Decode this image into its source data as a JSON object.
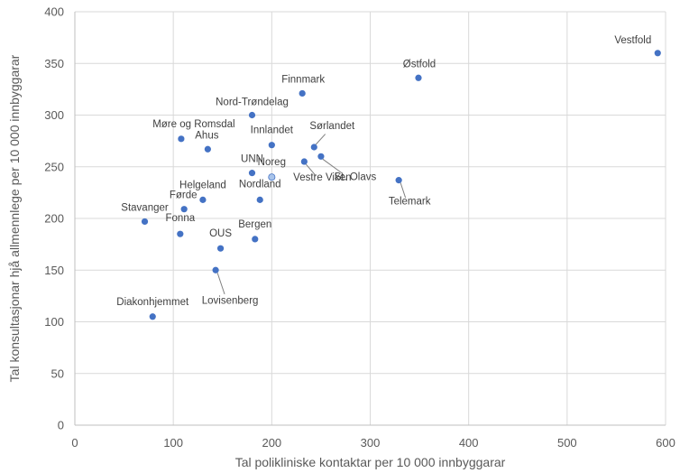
{
  "chart_data": {
    "type": "scatter",
    "xlabel": "Tal polikliniske kontaktar per 10 000 innbyggarar",
    "ylabel": "Tal konsultasjonar hjå allmennlege per 10 000 innbyggarar",
    "xlim": [
      0,
      600
    ],
    "ylim": [
      0,
      400
    ],
    "x_ticks": [
      "0",
      "100",
      "200",
      "300",
      "400",
      "500",
      "600"
    ],
    "y_ticks": [
      "0",
      "50",
      "100",
      "150",
      "200",
      "250",
      "300",
      "350",
      "400"
    ],
    "grid": true,
    "point_color": "#4472c4",
    "highlight_color": "#a9c4ea",
    "points": [
      {
        "label": "Vestfold",
        "x": 592,
        "y": 360
      },
      {
        "label": "Østfold",
        "x": 349,
        "y": 336
      },
      {
        "label": "Finnmark",
        "x": 231,
        "y": 321
      },
      {
        "label": "Nord-Trøndelag",
        "x": 180,
        "y": 300
      },
      {
        "label": "Sørlandet",
        "x": 243,
        "y": 269
      },
      {
        "label": "Innlandet",
        "x": 200,
        "y": 271
      },
      {
        "label": "Møre og Romsdal",
        "x": 108,
        "y": 277
      },
      {
        "label": "Ahus",
        "x": 135,
        "y": 267
      },
      {
        "label": "St. Olavs",
        "x": 250,
        "y": 260
      },
      {
        "label": "Vestre Viken",
        "x": 233,
        "y": 255
      },
      {
        "label": "UNN",
        "x": 180,
        "y": 244
      },
      {
        "label": "Noreg",
        "x": 200,
        "y": 240,
        "highlight": true
      },
      {
        "label": "Telemark",
        "x": 329,
        "y": 237
      },
      {
        "label": "Nordland",
        "x": 188,
        "y": 218
      },
      {
        "label": "Helgeland",
        "x": 130,
        "y": 218
      },
      {
        "label": "Førde",
        "x": 111,
        "y": 209
      },
      {
        "label": "Stavanger",
        "x": 71,
        "y": 197
      },
      {
        "label": "Fonna",
        "x": 107,
        "y": 185
      },
      {
        "label": "Bergen",
        "x": 183,
        "y": 180
      },
      {
        "label": "OUS",
        "x": 148,
        "y": 171
      },
      {
        "label": "Lovisenberg",
        "x": 143,
        "y": 150
      },
      {
        "label": "Diakonhjemmet",
        "x": 79,
        "y": 105
      }
    ]
  }
}
